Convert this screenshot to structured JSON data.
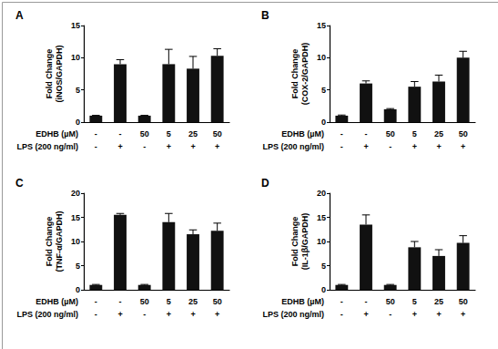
{
  "chart_data": [
    {
      "type": "bar",
      "title": "A",
      "y_label": "Fold Change\n(iNOS/GAPDH)",
      "row_labels": [
        "EDHB (µM)",
        "LPS (200 ng/ml)"
      ],
      "categories": [
        [
          "-",
          "-"
        ],
        [
          "-",
          "+"
        ],
        [
          "50",
          "-"
        ],
        [
          "5",
          "+"
        ],
        [
          "25",
          "+"
        ],
        [
          "50",
          "+"
        ]
      ],
      "values": [
        1,
        9,
        1,
        9,
        8.3,
        10.3
      ],
      "errors": [
        0.05,
        0.7,
        0.05,
        2.3,
        1.9,
        1.1
      ],
      "color": "#111111",
      "ylim": [
        0,
        15
      ],
      "yticks": [
        0,
        5,
        10,
        15
      ],
      "grid": false
    },
    {
      "type": "bar",
      "title": "B",
      "y_label": "Fold Change\n(COX-2/GAPDH)",
      "row_labels": [
        "EDHB (µM)",
        "LPS (200 ng/ml)"
      ],
      "categories": [
        [
          "-",
          "-"
        ],
        [
          "-",
          "+"
        ],
        [
          "50",
          "-"
        ],
        [
          "5",
          "+"
        ],
        [
          "25",
          "+"
        ],
        [
          "50",
          "+"
        ]
      ],
      "values": [
        1,
        6,
        2,
        5.5,
        6.3,
        10
      ],
      "errors": [
        0.1,
        0.4,
        0.1,
        0.8,
        1.0,
        1.0
      ],
      "color": "#111111",
      "ylim": [
        0,
        15
      ],
      "yticks": [
        0,
        5,
        10,
        15
      ],
      "grid": false
    },
    {
      "type": "bar",
      "title": "C",
      "y_label": "Fold Change\n(TNF-α/GAPDH)",
      "row_labels": [
        "EDHB (µM)",
        "LPS (200 ng/ml)"
      ],
      "categories": [
        [
          "-",
          "-"
        ],
        [
          "-",
          "+"
        ],
        [
          "50",
          "-"
        ],
        [
          "5",
          "+"
        ],
        [
          "25",
          "+"
        ],
        [
          "50",
          "+"
        ]
      ],
      "values": [
        1,
        15.5,
        1,
        14,
        11.5,
        12.2
      ],
      "errors": [
        0.1,
        0.3,
        0.1,
        1.8,
        0.9,
        1.6
      ],
      "color": "#111111",
      "ylim": [
        0,
        20
      ],
      "yticks": [
        0,
        5,
        10,
        15,
        20
      ],
      "grid": false
    },
    {
      "type": "bar",
      "title": "D",
      "y_label": "Fold Change\n(IL-1β/GAPDH)",
      "row_labels": [
        "EDHB (µM)",
        "LPS (200 ng/ml)"
      ],
      "categories": [
        [
          "-",
          "-"
        ],
        [
          "-",
          "+"
        ],
        [
          "50",
          "-"
        ],
        [
          "5",
          "+"
        ],
        [
          "25",
          "+"
        ],
        [
          "50",
          "+"
        ]
      ],
      "values": [
        1,
        13.5,
        1,
        8.8,
        7,
        9.7
      ],
      "errors": [
        0.1,
        2,
        0.1,
        1.2,
        1.3,
        1.5
      ],
      "color": "#111111",
      "ylim": [
        0,
        20
      ],
      "yticks": [
        0,
        5,
        10,
        15,
        20
      ],
      "grid": false
    }
  ]
}
